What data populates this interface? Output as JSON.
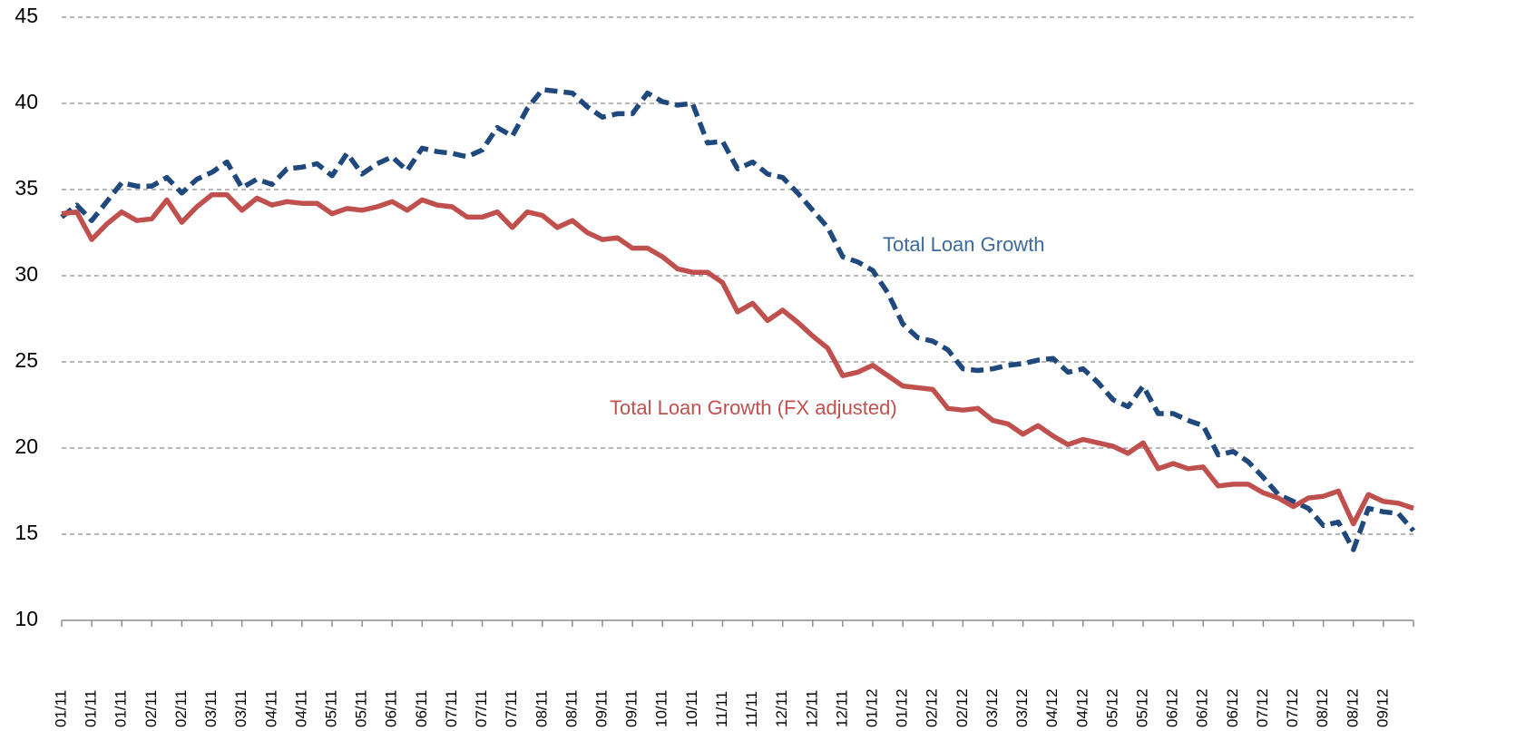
{
  "chart_data": {
    "type": "line",
    "categories": [
      "01/11",
      null,
      "01/11",
      null,
      "01/11",
      null,
      "02/11",
      null,
      "02/11",
      null,
      "03/11",
      null,
      "03/11",
      null,
      "04/11",
      null,
      "04/11",
      null,
      "05/11",
      null,
      "05/11",
      null,
      "06/11",
      null,
      "06/11",
      null,
      "07/11",
      null,
      "07/11",
      null,
      "07/11",
      null,
      "08/11",
      null,
      "08/11",
      null,
      "09/11",
      null,
      "09/11",
      null,
      "10/11",
      null,
      "10/11",
      null,
      "11/11",
      null,
      "11/11",
      null,
      "12/11",
      null,
      "12/11",
      null,
      "12/11",
      null,
      "01/12",
      null,
      "01/12",
      null,
      "02/12",
      null,
      "02/12",
      null,
      "03/12",
      null,
      "03/12",
      null,
      "04/12",
      null,
      "04/12",
      null,
      "05/12",
      null,
      "05/12",
      null,
      "06/12",
      null,
      "06/12",
      null,
      "06/12",
      null,
      "07/12",
      null,
      "07/12",
      null,
      "08/12",
      null,
      "08/12",
      null,
      "09/12",
      null,
      null
    ],
    "series": [
      {
        "name": "Total Loan Growth",
        "color": "#1f497d",
        "dashed": true,
        "values": [
          33.4,
          34.1,
          33.2,
          34.3,
          35.4,
          35.2,
          35.2,
          35.7,
          34.8,
          35.6,
          36.0,
          36.6,
          35.1,
          35.6,
          35.3,
          36.2,
          36.3,
          36.5,
          35.8,
          37.1,
          35.9,
          36.5,
          36.9,
          36.1,
          37.4,
          37.2,
          37.1,
          36.9,
          37.3,
          38.6,
          38.1,
          39.7,
          40.8,
          40.7,
          40.6,
          39.8,
          39.2,
          39.4,
          39.4,
          40.6,
          40.1,
          39.9,
          40.0,
          37.7,
          37.8,
          36.2,
          36.6,
          35.9,
          35.7,
          34.8,
          33.8,
          32.8,
          31.1,
          30.8,
          30.3,
          29.0,
          27.2,
          26.4,
          26.2,
          25.7,
          24.6,
          24.5,
          24.6,
          24.8,
          24.9,
          25.1,
          25.2,
          24.4,
          24.6,
          23.8,
          22.8,
          22.4,
          23.6,
          22.0,
          22.0,
          21.6,
          21.3,
          19.6,
          19.8,
          19.2,
          18.3,
          17.3,
          16.9,
          16.5,
          15.5,
          15.7,
          14.1,
          16.5,
          16.3,
          16.2,
          15.2
        ]
      },
      {
        "name": "Total Loan Growth (FX adjusted)",
        "color": "#c0504d",
        "dashed": false,
        "values": [
          33.6,
          33.7,
          32.1,
          33.0,
          33.7,
          33.2,
          33.3,
          34.4,
          33.1,
          34.0,
          34.7,
          34.7,
          33.8,
          34.5,
          34.1,
          34.3,
          34.2,
          34.2,
          33.6,
          33.9,
          33.8,
          34.0,
          34.3,
          33.8,
          34.4,
          34.1,
          34.0,
          33.4,
          33.4,
          33.7,
          32.8,
          33.7,
          33.5,
          32.8,
          33.2,
          32.5,
          32.1,
          32.2,
          31.6,
          31.6,
          31.1,
          30.4,
          30.2,
          30.2,
          29.6,
          27.9,
          28.4,
          27.4,
          28.0,
          27.3,
          26.5,
          25.8,
          24.2,
          24.4,
          24.8,
          24.2,
          23.6,
          23.5,
          23.4,
          22.3,
          22.2,
          22.3,
          21.6,
          21.4,
          20.8,
          21.3,
          20.7,
          20.2,
          20.5,
          20.3,
          20.1,
          19.7,
          20.3,
          18.8,
          19.1,
          18.8,
          18.9,
          17.8,
          17.9,
          17.9,
          17.4,
          17.1,
          16.6,
          17.1,
          17.2,
          17.5,
          15.6,
          17.3,
          16.9,
          16.8,
          16.5
        ]
      }
    ],
    "ylim": [
      10,
      45
    ],
    "yticks": [
      10,
      15,
      20,
      25,
      30,
      35,
      40,
      45
    ],
    "grid": true
  }
}
